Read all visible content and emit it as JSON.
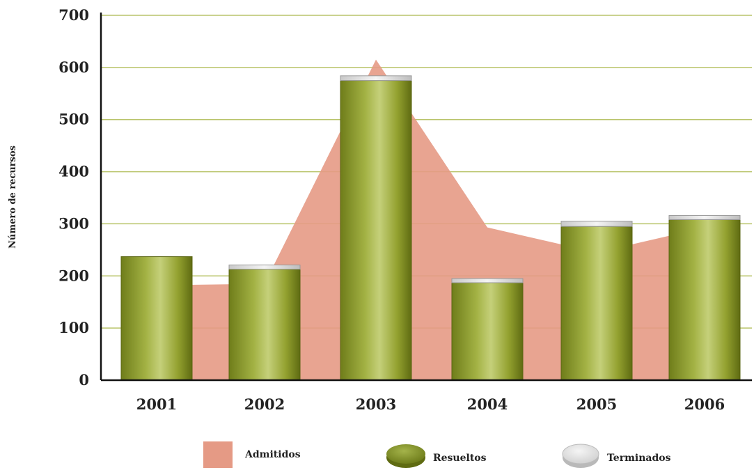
{
  "chart_data": {
    "type": "bar",
    "title": "",
    "xlabel": "",
    "ylabel": "Número de recursos",
    "categories": [
      "2001",
      "2002",
      "2003",
      "2004",
      "2005",
      "2006"
    ],
    "ylim": [
      0,
      700
    ],
    "yticks": [
      "0",
      "100",
      "200",
      "300",
      "400",
      "500",
      "600",
      "700"
    ],
    "grid": true,
    "legend_position": "bottom",
    "series": [
      {
        "name": "Admitidos",
        "type": "area",
        "color": "#e59a85",
        "values": [
          183,
          185,
          615,
          293,
          245,
          280
        ]
      },
      {
        "name": "Resueltos",
        "type": "bar",
        "color": "#8a9a2a",
        "values": [
          237,
          213,
          575,
          187,
          295,
          308
        ]
      },
      {
        "name": "Terminados",
        "type": "bar-stacked",
        "color": "#e4e4e4",
        "values": [
          0,
          8,
          9,
          8,
          10,
          8
        ]
      }
    ],
    "legend": [
      "Admitidos",
      "Resueltos",
      "Terminados"
    ]
  }
}
